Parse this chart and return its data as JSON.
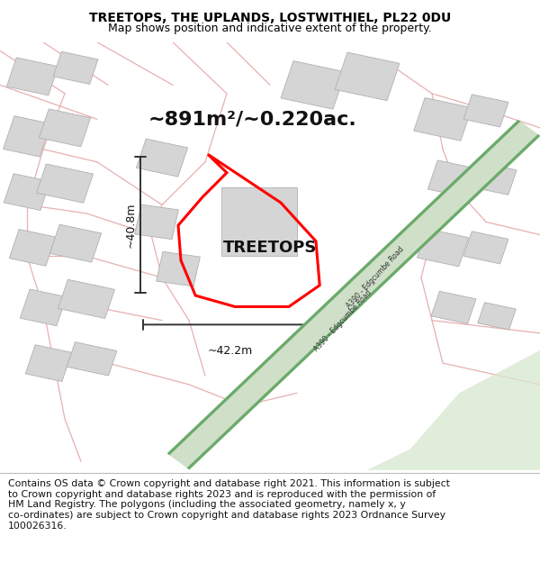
{
  "title": "TREETOPS, THE UPLANDS, LOSTWITHIEL, PL22 0DU",
  "subtitle": "Map shows position and indicative extent of the property.",
  "footer": "Contains OS data © Crown copyright and database right 2021. This information is subject\nto Crown copyright and database rights 2023 and is reproduced with the permission of\nHM Land Registry. The polygons (including the associated geometry, namely x, y\nco-ordinates) are subject to Crown copyright and database rights 2023 Ordnance Survey\n100026316.",
  "area_text": "~891m²/~0.220ac.",
  "property_label": "TREETOPS",
  "dim_width": "~42.2m",
  "dim_height": "~40.8m",
  "bg_color": "#ffffff",
  "map_bg": "#f5f0f0",
  "road_green_fill": "#cfdfc8",
  "road_green_stripe": "#6aaa6a",
  "plot_color": "#ff0000",
  "title_fontsize": 10,
  "subtitle_fontsize": 9,
  "footer_fontsize": 7.8,
  "area_fontsize": 16,
  "label_fontsize": 13,
  "dim_fontsize": 9
}
